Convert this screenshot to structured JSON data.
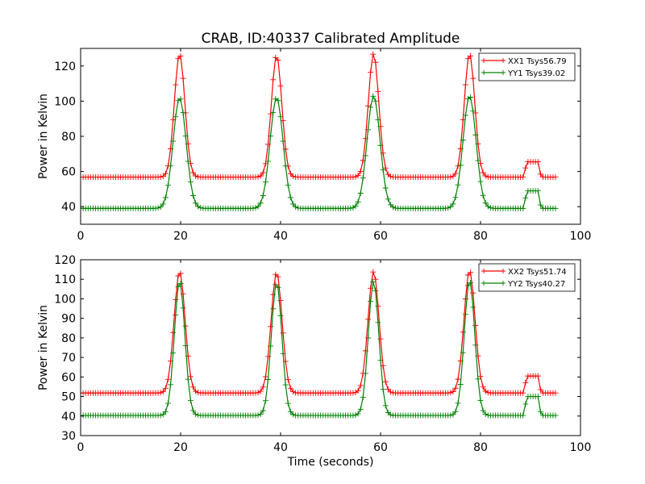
{
  "figure": {
    "title": "CRAB, ID:40337 Calibrated Amplitude",
    "background": "#ffffff"
  },
  "chart_data": [
    {
      "type": "line",
      "title": "CRAB, ID:40337 Calibrated Amplitude",
      "xlabel": "",
      "ylabel": "Power in Kelvin",
      "xlim": [
        0,
        100
      ],
      "ylim": [
        30,
        130
      ],
      "xticks": [
        0,
        20,
        40,
        60,
        80,
        100
      ],
      "yticks": [
        40,
        60,
        80,
        100,
        120
      ],
      "grid": false,
      "legend_position": "top-right",
      "marker": "+",
      "sample_step_seconds": 0.5,
      "sample_range_seconds": [
        0,
        95
      ],
      "series": [
        {
          "name": "XX1 Tsys56.79",
          "color": "#ff0000",
          "baseline": 56.8,
          "peaks": [
            {
              "center": 19.8,
              "peak": 127,
              "sigma": 1.05
            },
            {
              "center": 39.2,
              "peak": 126,
              "sigma": 1.05
            },
            {
              "center": 58.6,
              "peak": 127,
              "sigma": 1.05
            },
            {
              "center": 77.8,
              "peak": 127,
              "sigma": 1.05
            }
          ],
          "plateau": {
            "start": 89.2,
            "end": 91.6,
            "value": 65.5
          }
        },
        {
          "name": "YY1 Tsys39.02",
          "color": "#008000",
          "baseline": 39.0,
          "peaks": [
            {
              "center": 19.8,
              "peak": 102,
              "sigma": 1.3
            },
            {
              "center": 39.2,
              "peak": 102,
              "sigma": 1.3
            },
            {
              "center": 58.6,
              "peak": 103,
              "sigma": 1.3
            },
            {
              "center": 77.8,
              "peak": 103,
              "sigma": 1.3
            }
          ],
          "plateau": {
            "start": 89.2,
            "end": 91.6,
            "value": 49.0
          }
        }
      ]
    },
    {
      "type": "line",
      "title": "",
      "xlabel": "Time (seconds)",
      "ylabel": "Power in Kelvin",
      "xlim": [
        0,
        100
      ],
      "ylim": [
        30,
        120
      ],
      "xticks": [
        0,
        20,
        40,
        60,
        80,
        100
      ],
      "yticks": [
        30,
        40,
        50,
        60,
        70,
        80,
        90,
        100,
        110,
        120
      ],
      "grid": false,
      "legend_position": "top-right",
      "marker": "+",
      "sample_step_seconds": 0.5,
      "sample_range_seconds": [
        0,
        95
      ],
      "series": [
        {
          "name": "XX2 Tsys51.74",
          "color": "#ff0000",
          "baseline": 51.8,
          "peaks": [
            {
              "center": 19.8,
              "peak": 114,
              "sigma": 1.1
            },
            {
              "center": 39.2,
              "peak": 113.5,
              "sigma": 1.1
            },
            {
              "center": 58.6,
              "peak": 114,
              "sigma": 1.1
            },
            {
              "center": 77.8,
              "peak": 114.5,
              "sigma": 1.1
            }
          ],
          "plateau": {
            "start": 89.2,
            "end": 91.6,
            "value": 60.5
          }
        },
        {
          "name": "YY2 Tsys40.27",
          "color": "#008000",
          "baseline": 40.3,
          "peaks": [
            {
              "center": 19.8,
              "peak": 109,
              "sigma": 1.05
            },
            {
              "center": 39.2,
              "peak": 108.5,
              "sigma": 1.05
            },
            {
              "center": 58.6,
              "peak": 109,
              "sigma": 1.05
            },
            {
              "center": 77.8,
              "peak": 109.5,
              "sigma": 1.05
            }
          ],
          "plateau": {
            "start": 89.2,
            "end": 91.6,
            "value": 50.0
          }
        }
      ]
    }
  ]
}
